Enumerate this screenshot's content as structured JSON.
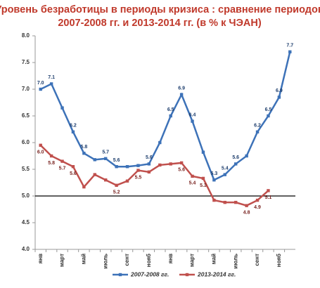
{
  "chart_data": {
    "type": "line",
    "title": [
      "Уровень безработицы в периоды кризиса : сравнение периодов",
      "2007-2008 гг. и 2013-2014 гг. (в % к ЧЭАН)"
    ],
    "categories": [
      "янв",
      null,
      "март",
      null,
      "май",
      null,
      "июль",
      null,
      "сент",
      null,
      "нояб",
      null,
      "янв",
      null,
      "март",
      null,
      "май",
      null,
      "июль",
      null,
      "сент",
      null,
      "нояб",
      null
    ],
    "series": [
      {
        "name": "2007-2008 гг.",
        "color": "#3d72b8",
        "values": [
          7.0,
          7.1,
          6.65,
          6.2,
          5.8,
          5.68,
          5.7,
          5.55,
          5.55,
          5.57,
          5.6,
          6.0,
          6.5,
          6.9,
          6.4,
          5.82,
          5.3,
          5.4,
          5.6,
          5.75,
          6.2,
          6.5,
          6.85,
          7.7
        ],
        "value_labels": [
          "7.0",
          "7.1",
          null,
          "6.2",
          "5.8",
          null,
          "5.7",
          "5.6",
          null,
          null,
          "5.6",
          null,
          "6.5",
          "6.9",
          "6.4",
          null,
          "5.3",
          "5.4",
          "5.6",
          null,
          "6.2",
          "6.5",
          "6.9",
          "7.7"
        ]
      },
      {
        "name": "2013-2014 гг.",
        "color": "#c0504d",
        "values": [
          5.95,
          5.75,
          5.65,
          5.55,
          5.17,
          5.4,
          5.3,
          5.2,
          5.28,
          5.48,
          5.45,
          5.58,
          5.6,
          5.62,
          5.37,
          5.33,
          4.92,
          4.88,
          4.88,
          4.82,
          4.92,
          5.1,
          null,
          null
        ],
        "value_labels": [
          "6.0",
          "5.8",
          "5.7",
          "5.6",
          null,
          null,
          null,
          "5.2",
          null,
          "5.5",
          null,
          null,
          null,
          "5.6",
          "5.4",
          "5.3",
          null,
          null,
          null,
          "4.8",
          "4.9",
          "5.1",
          null,
          null
        ]
      }
    ],
    "ylim": [
      4,
      8
    ],
    "yticks": [
      {
        "value": 4,
        "label": "4.0"
      },
      4.5,
      {
        "value": 5,
        "label": "5.0"
      },
      5.5,
      {
        "value": 6,
        "label": "6.0"
      },
      6.5,
      {
        "value": 7,
        "label": "7.0"
      },
      7.5,
      {
        "value": 8,
        "label": "8.0"
      }
    ],
    "reference_line": 5,
    "legend": "bottom"
  }
}
